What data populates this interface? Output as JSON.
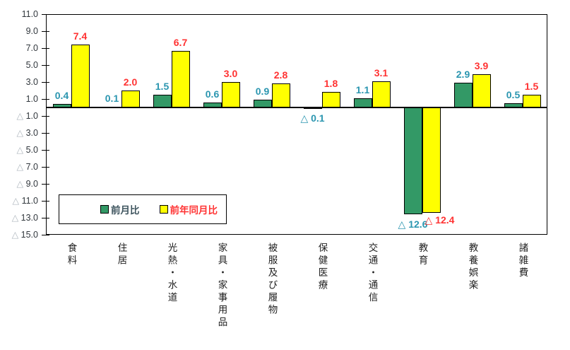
{
  "chart_data": {
    "type": "bar",
    "title": "",
    "categories": [
      "食料",
      "住居",
      "光熱・水道",
      "家具・家事用品",
      "被服及び履物",
      "保健医療",
      "交通・通信",
      "教育",
      "教養娯楽",
      "諸雑費"
    ],
    "series": [
      {
        "name": "前月比",
        "color": "#339966",
        "label_color": "#2B96B0",
        "values": [
          0.4,
          0.1,
          1.5,
          0.6,
          0.9,
          -0.1,
          1.1,
          -12.6,
          2.9,
          0.5
        ]
      },
      {
        "name": "前年同月比",
        "color": "#FFFF00",
        "label_color": "#FF3333",
        "values": [
          7.4,
          2.0,
          6.7,
          3.0,
          2.8,
          1.8,
          3.1,
          -12.4,
          3.9,
          1.5
        ]
      }
    ],
    "ylim": [
      -15.0,
      11.0
    ],
    "ytick_step": 2.0,
    "negative_prefix": "△",
    "grid": false,
    "legend_position": "inside-bottom-left",
    "xlabel": "",
    "ylabel": ""
  },
  "legend": {
    "items": [
      {
        "label": "前月比",
        "swatch_color": "#339966",
        "text_color": "#3E545E"
      },
      {
        "label": "前年同月比",
        "swatch_color": "#FFFF00",
        "text_color": "#FF3333"
      }
    ]
  },
  "colors": {
    "axis": "#000000",
    "tick_number": "#31373D",
    "tick_triangle": "#AEB6BD",
    "category_label": "#1F1F1F",
    "background": "#FFFFFF"
  }
}
